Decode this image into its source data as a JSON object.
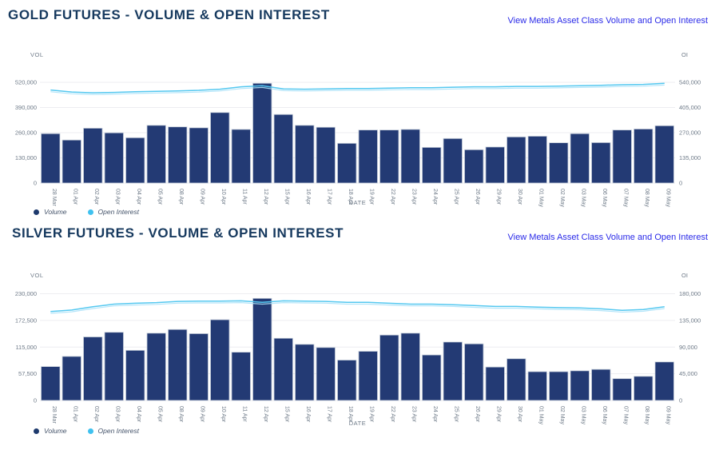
{
  "page": {
    "background": "#ffffff"
  },
  "colors": {
    "title": "#16395e",
    "link": "#2a2ae8",
    "axis_text": "#6f7b89",
    "legend_text": "#44536a",
    "grid": "#ededf1",
    "bar": "#233a74",
    "bar_stroke": "#c9d1dc",
    "line": "#55c8f0",
    "line_echo": "#ace2f8"
  },
  "chart_data": [
    {
      "id": "gold-futures",
      "type": "bar",
      "title": "GOLD FUTURES - VOLUME & OPEN INTEREST",
      "link_text": "View Metals Asset Class Volume and Open Interest",
      "xlabel": "DATE",
      "grid": true,
      "legend_position": "bottom-left",
      "categories": [
        "28 Mar",
        "01 Apr",
        "02 Apr",
        "03 Apr",
        "04 Apr",
        "05 Apr",
        "08 Apr",
        "09 Apr",
        "10 Apr",
        "11 Apr",
        "12 Apr",
        "15 Apr",
        "16 Apr",
        "17 Apr",
        "18 Apr",
        "19 Apr",
        "22 Apr",
        "23 Apr",
        "24 Apr",
        "25 Apr",
        "26 Apr",
        "29 Apr",
        "30 Apr",
        "01 May",
        "02 May",
        "03 May",
        "06 May",
        "07 May",
        "08 May",
        "09 May"
      ],
      "left_axis": {
        "label": "VOL",
        "max": 520000,
        "ticks": [
          "520,000",
          "390,000",
          "260,000",
          "130,000",
          "0"
        ]
      },
      "right_axis": {
        "label": "OI",
        "max": 540000,
        "ticks": [
          "540,000",
          "405,000",
          "270,000",
          "135,000",
          "0"
        ]
      },
      "series": [
        {
          "name": "Volume",
          "type": "bar",
          "axis": "left",
          "color": "#233a74",
          "values": [
            255000,
            222000,
            283000,
            259000,
            234000,
            298000,
            290000,
            285000,
            364000,
            277000,
            515000,
            354000,
            298000,
            288000,
            205000,
            274000,
            274000,
            277000,
            184000,
            230000,
            172000,
            186000,
            238000,
            242000,
            208000,
            255000,
            209000,
            274000,
            279000,
            296000
          ]
        },
        {
          "name": "Open Interest",
          "type": "line",
          "axis": "right",
          "color": "#55c8f0",
          "values": [
            499000,
            488000,
            484000,
            486000,
            490000,
            492000,
            494000,
            497000,
            503000,
            516000,
            522000,
            505000,
            503000,
            505000,
            507000,
            507000,
            509000,
            511000,
            511000,
            514000,
            516000,
            516000,
            518000,
            518000,
            520000,
            522000,
            524000,
            527000,
            529000,
            535000
          ]
        }
      ]
    },
    {
      "id": "silver-futures",
      "type": "bar",
      "title": "SILVER FUTURES - VOLUME & OPEN INTEREST",
      "link_text": "View Metals Asset Class Volume and Open Interest",
      "xlabel": "DATE",
      "grid": true,
      "legend_position": "bottom-left",
      "categories": [
        "28 Mar",
        "01 Apr",
        "02 Apr",
        "03 Apr",
        "04 Apr",
        "05 Apr",
        "08 Apr",
        "09 Apr",
        "10 Apr",
        "11 Apr",
        "12 Apr",
        "15 Apr",
        "16 Apr",
        "17 Apr",
        "18 Apr",
        "19 Apr",
        "22 Apr",
        "23 Apr",
        "24 Apr",
        "25 Apr",
        "26 Apr",
        "29 Apr",
        "30 Apr",
        "01 May",
        "02 May",
        "03 May",
        "06 May",
        "07 May",
        "08 May",
        "09 May"
      ],
      "left_axis": {
        "label": "VOL",
        "max": 230000,
        "ticks": [
          "230,000",
          "172,500",
          "115,000",
          "57,500",
          "0"
        ]
      },
      "right_axis": {
        "label": "OI",
        "max": 180000,
        "ticks": [
          "180,000",
          "135,000",
          "90,000",
          "45,000",
          "0"
        ]
      },
      "series": [
        {
          "name": "Volume",
          "type": "bar",
          "axis": "left",
          "color": "#233a74",
          "values": [
            73000,
            95000,
            137000,
            147000,
            108000,
            145000,
            153000,
            144000,
            174000,
            104000,
            220000,
            134000,
            121000,
            114000,
            87000,
            106000,
            141000,
            145000,
            98000,
            126000,
            122000,
            72000,
            90000,
            62000,
            62000,
            64000,
            67000,
            47000,
            52000,
            83000
          ]
        },
        {
          "name": "Open Interest",
          "type": "line",
          "axis": "right",
          "color": "#55c8f0",
          "values": [
            150000,
            152500,
            158000,
            162500,
            164000,
            165000,
            167000,
            167500,
            167500,
            168000,
            165500,
            168000,
            167500,
            167000,
            165500,
            165500,
            164000,
            162500,
            162500,
            161500,
            160000,
            158500,
            158500,
            157500,
            156500,
            156000,
            154500,
            152000,
            153500,
            158000
          ]
        }
      ]
    }
  ]
}
